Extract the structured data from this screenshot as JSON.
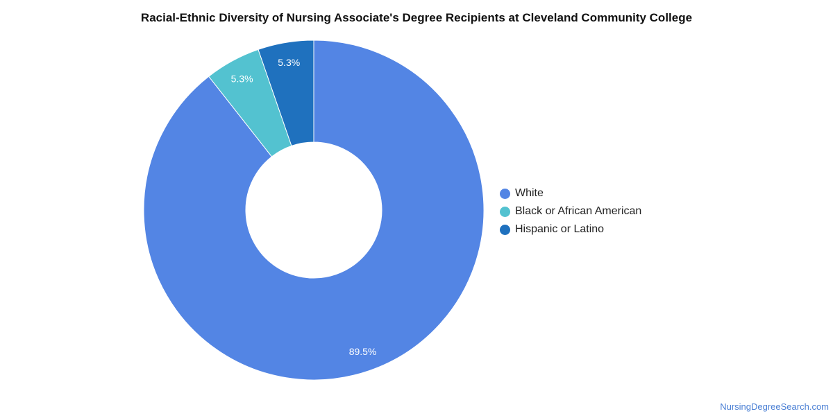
{
  "chart_data": {
    "type": "pie",
    "title": "Racial-Ethnic Diversity of Nursing Associate's Degree Recipients at Cleveland Community College",
    "categories": [
      "White",
      "Black or African American",
      "Hispanic or Latino"
    ],
    "values": [
      89.5,
      5.3,
      5.3
    ],
    "labels": [
      "89.5%",
      "5.3%",
      "5.3%"
    ],
    "colors": [
      "#5385e4",
      "#53c2d0",
      "#1f71be"
    ],
    "donut": true,
    "legend_position": "right"
  },
  "footer": {
    "credit": "NursingDegreeSearch.com"
  }
}
